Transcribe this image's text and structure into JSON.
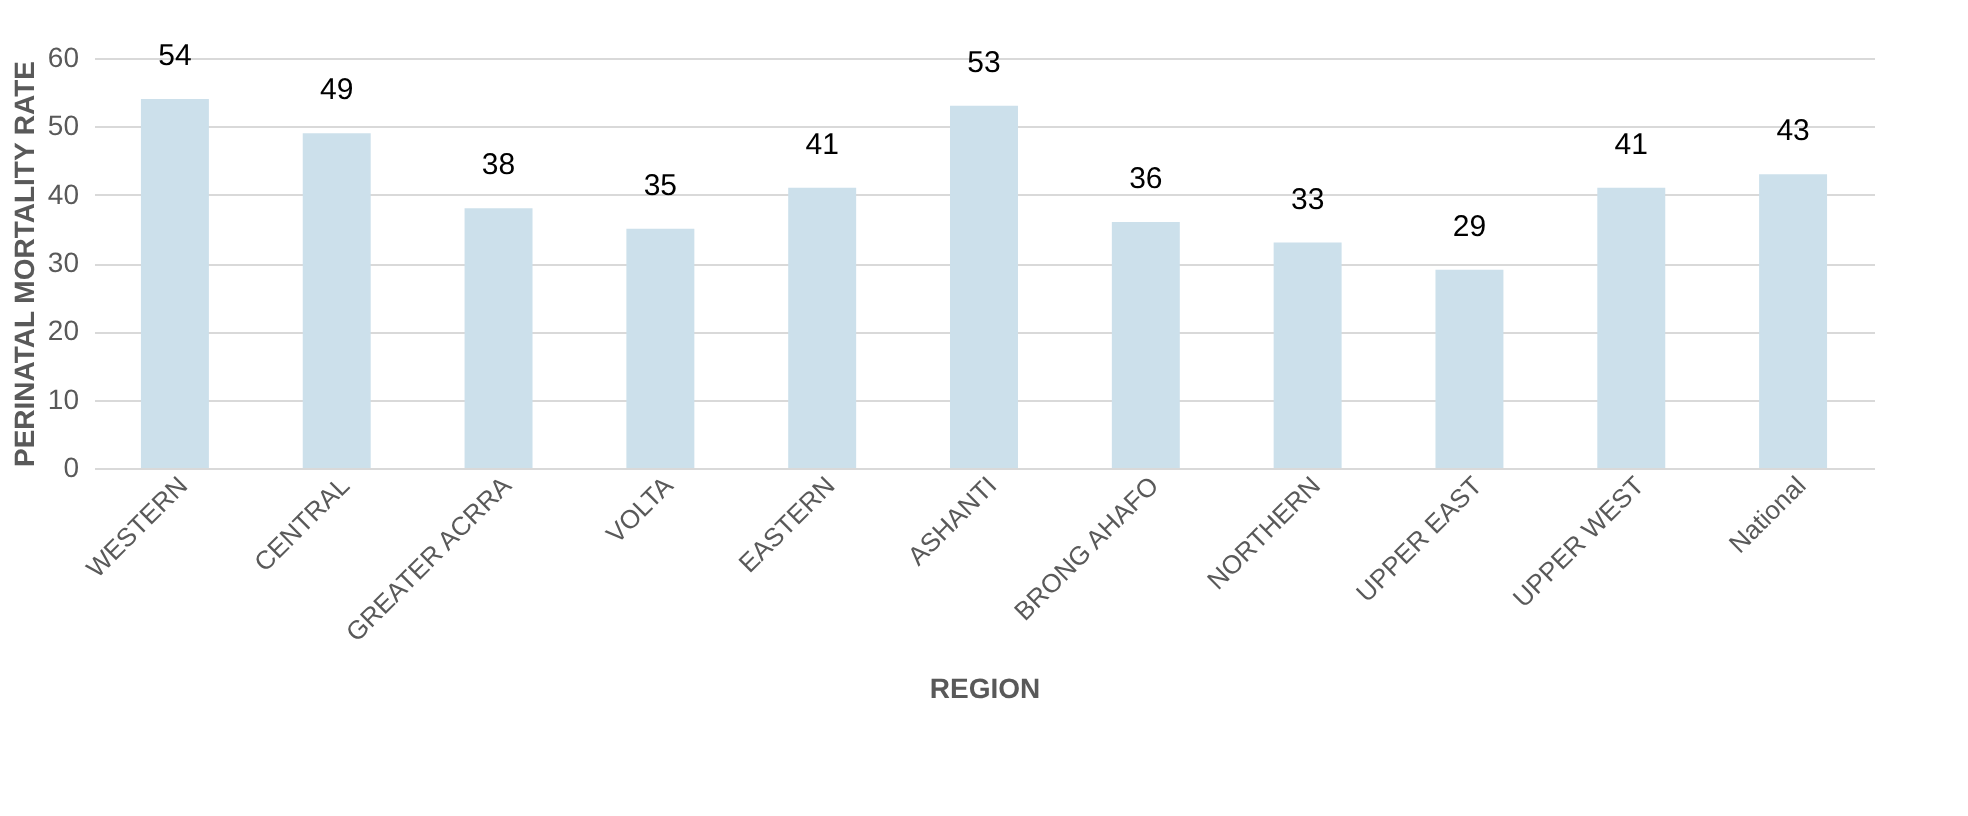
{
  "chart_data": {
    "type": "bar",
    "xlabel": "REGION",
    "ylabel": "PERINATAL MORTALITY RATE",
    "categories": [
      "WESTERN",
      "CENTRAL",
      "GREATER ACRRA",
      "VOLTA",
      "EASTERN",
      "ASHANTI",
      "BRONG AHAFO",
      "NORTHERN",
      "UPPER EAST",
      "UPPER WEST",
      "National"
    ],
    "values": [
      54,
      49,
      38,
      35,
      41,
      53,
      36,
      33,
      29,
      41,
      43
    ],
    "color": "#cce0eb",
    "ylim": [
      0,
      60
    ],
    "yticks": [
      0,
      10,
      20,
      30,
      40,
      50,
      60
    ],
    "grid": "y",
    "data_labels": true
  }
}
